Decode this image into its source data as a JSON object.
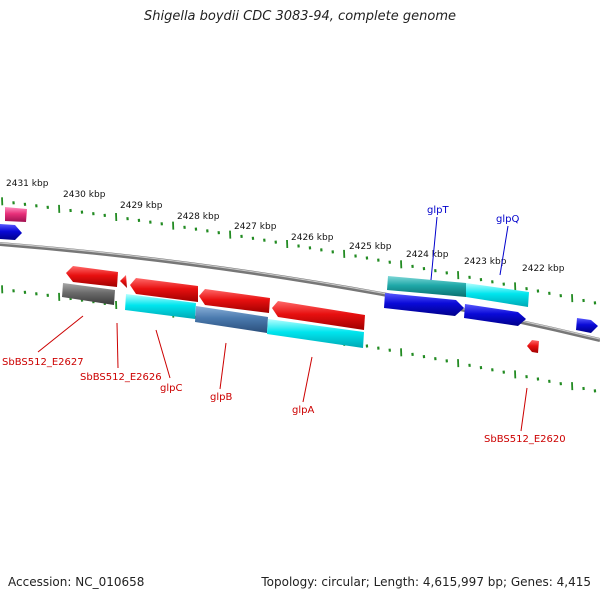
{
  "title": "Shigella boydii CDC 3083-94, complete genome",
  "footer": {
    "accession": "Accession: NC_010658",
    "summary": "Topology: circular; Length: 4,615,997 bp; Genes: 4,415"
  },
  "kbp_labels": [
    "2431 kbp",
    "2430 kbp",
    "2429 kbp",
    "2428 kbp",
    "2427 kbp",
    "2426 kbp",
    "2425 kbp",
    "2424 kbp",
    "2423 kbp",
    "2422 kbp"
  ],
  "gene_labels": {
    "top": [
      "glpT",
      "glpQ"
    ],
    "bottom": [
      "SbBS512_E2627",
      "SbBS512_E2626",
      "glpC",
      "glpB",
      "glpA",
      "SbBS512_E2620"
    ]
  },
  "colors": {
    "forward_gene": "#0a0ad8",
    "reverse_gene": "#e01010",
    "cds": "#00e5ee",
    "pseudo": "#6a6a6a",
    "misc": "#e8307a",
    "tick": "#228b22",
    "backbone": "#8a8a8a",
    "label_top": "#0000cc",
    "label_bottom": "#cc0000"
  }
}
